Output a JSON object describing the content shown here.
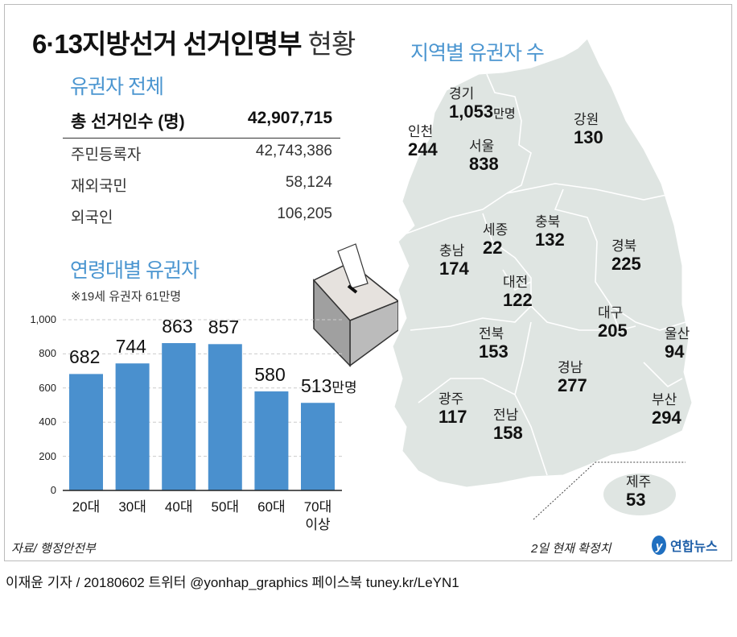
{
  "title": {
    "main": "6·13지방선거 선거인명부",
    "suffix": "현황"
  },
  "totals": {
    "heading": "유권자 전체",
    "rows": [
      {
        "label": "총 선거인수 (명)",
        "value": "42,907,715"
      },
      {
        "label": "주민등록자",
        "value": "42,743,386"
      },
      {
        "label": "재외국민",
        "value": "58,124"
      },
      {
        "label": "외국인",
        "value": "106,205"
      }
    ]
  },
  "age": {
    "heading": "연령대별 유권자",
    "note": "※19세 유권자 61만명",
    "unit": "만명",
    "last_label_line2": "이상"
  },
  "chart_data": {
    "type": "bar",
    "title": "연령대별 유권자",
    "categories": [
      "20대",
      "30대",
      "40대",
      "50대",
      "60대",
      "70대"
    ],
    "values": [
      682,
      744,
      863,
      857,
      580,
      513
    ],
    "value_labels": [
      "682",
      "744",
      "863",
      "857",
      "580",
      "513"
    ],
    "yticks": [
      "0",
      "200",
      "400",
      "600",
      "800",
      "1,000"
    ],
    "ytick_values": [
      0,
      200,
      400,
      600,
      800,
      1000
    ],
    "ylim": [
      0,
      1000
    ],
    "ylabel": "만명",
    "grid": true,
    "color": "#4a90ce"
  },
  "map": {
    "heading": "지역별 유권자 수",
    "unit": "만명",
    "regions": [
      {
        "name": "경기",
        "value": "1,053"
      },
      {
        "name": "인천",
        "value": "244"
      },
      {
        "name": "서울",
        "value": "838"
      },
      {
        "name": "강원",
        "value": "130"
      },
      {
        "name": "세종",
        "value": "22"
      },
      {
        "name": "충북",
        "value": "132"
      },
      {
        "name": "충남",
        "value": "174"
      },
      {
        "name": "경북",
        "value": "225"
      },
      {
        "name": "대전",
        "value": "122"
      },
      {
        "name": "대구",
        "value": "205"
      },
      {
        "name": "울산",
        "value": "94"
      },
      {
        "name": "전북",
        "value": "153"
      },
      {
        "name": "경남",
        "value": "277"
      },
      {
        "name": "부산",
        "value": "294"
      },
      {
        "name": "광주",
        "value": "117"
      },
      {
        "name": "전남",
        "value": "158"
      },
      {
        "name": "제주",
        "value": "53"
      }
    ]
  },
  "source": "자료/ 행정안전부",
  "basis": "2일 현재 확정치",
  "logo": "연합뉴스",
  "credit": "이재윤 기자 / 20180602   트위터 @yonhap_graphics  페이스북 tuney.kr/LeYN1"
}
